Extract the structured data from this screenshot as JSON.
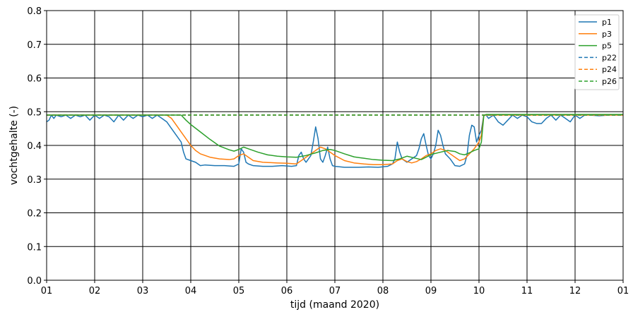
{
  "chart_data": {
    "type": "line",
    "xlabel": "tijd (maand 2020)",
    "ylabel": "vochtgehalte (-)",
    "xlim": [
      1,
      13
    ],
    "ylim": [
      0.0,
      0.8
    ],
    "grid": true,
    "legend_position": "top-right",
    "x_ticks": [
      1,
      2,
      3,
      4,
      5,
      6,
      7,
      8,
      9,
      10,
      11,
      12,
      13
    ],
    "x_tick_labels": [
      "01",
      "02",
      "03",
      "04",
      "05",
      "06",
      "07",
      "08",
      "09",
      "10",
      "11",
      "12",
      "01"
    ],
    "y_ticks": [
      0.0,
      0.1,
      0.2,
      0.3,
      0.4,
      0.5,
      0.6,
      0.7,
      0.8
    ],
    "y_tick_labels": [
      "0.0",
      "0.1",
      "0.2",
      "0.3",
      "0.4",
      "0.5",
      "0.6",
      "0.7",
      "0.8"
    ],
    "series": [
      {
        "name": "p1",
        "color": "#1f77b4",
        "dash": "solid",
        "points": [
          [
            1.0,
            0.47
          ],
          [
            1.05,
            0.475
          ],
          [
            1.1,
            0.49
          ],
          [
            1.15,
            0.48
          ],
          [
            1.2,
            0.49
          ],
          [
            1.3,
            0.485
          ],
          [
            1.4,
            0.49
          ],
          [
            1.5,
            0.48
          ],
          [
            1.6,
            0.49
          ],
          [
            1.7,
            0.485
          ],
          [
            1.8,
            0.49
          ],
          [
            1.9,
            0.475
          ],
          [
            2.0,
            0.49
          ],
          [
            2.1,
            0.48
          ],
          [
            2.2,
            0.49
          ],
          [
            2.3,
            0.485
          ],
          [
            2.4,
            0.47
          ],
          [
            2.5,
            0.49
          ],
          [
            2.6,
            0.475
          ],
          [
            2.7,
            0.49
          ],
          [
            2.8,
            0.48
          ],
          [
            2.9,
            0.49
          ],
          [
            3.0,
            0.485
          ],
          [
            3.1,
            0.49
          ],
          [
            3.2,
            0.48
          ],
          [
            3.3,
            0.49
          ],
          [
            3.4,
            0.48
          ],
          [
            3.5,
            0.47
          ],
          [
            3.6,
            0.45
          ],
          [
            3.7,
            0.43
          ],
          [
            3.8,
            0.41
          ],
          [
            3.85,
            0.38
          ],
          [
            3.9,
            0.36
          ],
          [
            4.0,
            0.355
          ],
          [
            4.1,
            0.35
          ],
          [
            4.2,
            0.34
          ],
          [
            4.3,
            0.342
          ],
          [
            4.5,
            0.34
          ],
          [
            4.7,
            0.34
          ],
          [
            4.9,
            0.338
          ],
          [
            5.0,
            0.345
          ],
          [
            5.05,
            0.39
          ],
          [
            5.1,
            0.38
          ],
          [
            5.15,
            0.35
          ],
          [
            5.2,
            0.345
          ],
          [
            5.3,
            0.34
          ],
          [
            5.5,
            0.338
          ],
          [
            5.7,
            0.338
          ],
          [
            5.9,
            0.34
          ],
          [
            6.1,
            0.338
          ],
          [
            6.2,
            0.34
          ],
          [
            6.25,
            0.37
          ],
          [
            6.3,
            0.38
          ],
          [
            6.35,
            0.36
          ],
          [
            6.4,
            0.35
          ],
          [
            6.5,
            0.37
          ],
          [
            6.55,
            0.41
          ],
          [
            6.6,
            0.455
          ],
          [
            6.65,
            0.42
          ],
          [
            6.7,
            0.36
          ],
          [
            6.75,
            0.35
          ],
          [
            6.8,
            0.37
          ],
          [
            6.85,
            0.395
          ],
          [
            6.9,
            0.36
          ],
          [
            6.95,
            0.34
          ],
          [
            7.0,
            0.338
          ],
          [
            7.2,
            0.335
          ],
          [
            7.5,
            0.335
          ],
          [
            7.7,
            0.336
          ],
          [
            7.9,
            0.335
          ],
          [
            8.1,
            0.338
          ],
          [
            8.2,
            0.345
          ],
          [
            8.25,
            0.36
          ],
          [
            8.3,
            0.41
          ],
          [
            8.35,
            0.38
          ],
          [
            8.4,
            0.36
          ],
          [
            8.5,
            0.35
          ],
          [
            8.6,
            0.36
          ],
          [
            8.7,
            0.37
          ],
          [
            8.75,
            0.39
          ],
          [
            8.8,
            0.42
          ],
          [
            8.85,
            0.435
          ],
          [
            8.9,
            0.4
          ],
          [
            8.95,
            0.37
          ],
          [
            9.0,
            0.36
          ],
          [
            9.05,
            0.375
          ],
          [
            9.1,
            0.4
          ],
          [
            9.15,
            0.445
          ],
          [
            9.2,
            0.43
          ],
          [
            9.25,
            0.4
          ],
          [
            9.3,
            0.375
          ],
          [
            9.4,
            0.36
          ],
          [
            9.5,
            0.34
          ],
          [
            9.6,
            0.338
          ],
          [
            9.7,
            0.345
          ],
          [
            9.75,
            0.37
          ],
          [
            9.8,
            0.43
          ],
          [
            9.85,
            0.46
          ],
          [
            9.9,
            0.455
          ],
          [
            9.95,
            0.41
          ],
          [
            10.0,
            0.43
          ],
          [
            10.05,
            0.445
          ],
          [
            10.1,
            0.49
          ],
          [
            10.15,
            0.49
          ],
          [
            10.2,
            0.48
          ],
          [
            10.3,
            0.49
          ],
          [
            10.4,
            0.47
          ],
          [
            10.5,
            0.46
          ],
          [
            10.6,
            0.475
          ],
          [
            10.7,
            0.49
          ],
          [
            10.8,
            0.48
          ],
          [
            10.9,
            0.49
          ],
          [
            11.0,
            0.485
          ],
          [
            11.1,
            0.47
          ],
          [
            11.2,
            0.465
          ],
          [
            11.3,
            0.465
          ],
          [
            11.4,
            0.48
          ],
          [
            11.5,
            0.49
          ],
          [
            11.6,
            0.475
          ],
          [
            11.7,
            0.49
          ],
          [
            11.8,
            0.48
          ],
          [
            11.9,
            0.47
          ],
          [
            12.0,
            0.49
          ],
          [
            12.1,
            0.48
          ],
          [
            12.2,
            0.49
          ],
          [
            12.3,
            0.49
          ],
          [
            12.5,
            0.488
          ],
          [
            12.7,
            0.49
          ],
          [
            12.9,
            0.49
          ],
          [
            13.0,
            0.49
          ]
        ]
      },
      {
        "name": "p3",
        "color": "#ff7f0e",
        "dash": "solid",
        "points": [
          [
            1.0,
            0.49
          ],
          [
            2.0,
            0.49
          ],
          [
            3.0,
            0.49
          ],
          [
            3.5,
            0.49
          ],
          [
            3.6,
            0.48
          ],
          [
            3.7,
            0.46
          ],
          [
            3.8,
            0.44
          ],
          [
            3.9,
            0.42
          ],
          [
            4.0,
            0.4
          ],
          [
            4.1,
            0.385
          ],
          [
            4.2,
            0.375
          ],
          [
            4.4,
            0.365
          ],
          [
            4.6,
            0.36
          ],
          [
            4.8,
            0.358
          ],
          [
            4.9,
            0.36
          ],
          [
            5.0,
            0.37
          ],
          [
            5.1,
            0.375
          ],
          [
            5.2,
            0.365
          ],
          [
            5.3,
            0.355
          ],
          [
            5.5,
            0.35
          ],
          [
            5.8,
            0.348
          ],
          [
            6.0,
            0.347
          ],
          [
            6.2,
            0.345
          ],
          [
            6.3,
            0.355
          ],
          [
            6.4,
            0.365
          ],
          [
            6.5,
            0.375
          ],
          [
            6.6,
            0.385
          ],
          [
            6.7,
            0.395
          ],
          [
            6.8,
            0.39
          ],
          [
            6.9,
            0.38
          ],
          [
            7.0,
            0.37
          ],
          [
            7.2,
            0.355
          ],
          [
            7.4,
            0.348
          ],
          [
            7.6,
            0.345
          ],
          [
            7.8,
            0.343
          ],
          [
            8.0,
            0.343
          ],
          [
            8.2,
            0.345
          ],
          [
            8.3,
            0.355
          ],
          [
            8.4,
            0.36
          ],
          [
            8.5,
            0.352
          ],
          [
            8.6,
            0.348
          ],
          [
            8.7,
            0.352
          ],
          [
            8.8,
            0.36
          ],
          [
            8.9,
            0.37
          ],
          [
            9.0,
            0.375
          ],
          [
            9.1,
            0.385
          ],
          [
            9.2,
            0.39
          ],
          [
            9.3,
            0.385
          ],
          [
            9.4,
            0.375
          ],
          [
            9.5,
            0.365
          ],
          [
            9.6,
            0.355
          ],
          [
            9.7,
            0.36
          ],
          [
            9.8,
            0.375
          ],
          [
            9.9,
            0.39
          ],
          [
            10.0,
            0.41
          ],
          [
            10.05,
            0.43
          ],
          [
            10.1,
            0.49
          ],
          [
            10.2,
            0.49
          ],
          [
            11.0,
            0.49
          ],
          [
            12.0,
            0.49
          ],
          [
            13.0,
            0.49
          ]
        ]
      },
      {
        "name": "p5",
        "color": "#2ca02c",
        "dash": "solid",
        "points": [
          [
            1.0,
            0.49
          ],
          [
            2.0,
            0.49
          ],
          [
            3.0,
            0.49
          ],
          [
            3.8,
            0.49
          ],
          [
            3.9,
            0.475
          ],
          [
            4.0,
            0.462
          ],
          [
            4.2,
            0.44
          ],
          [
            4.4,
            0.418
          ],
          [
            4.6,
            0.398
          ],
          [
            4.8,
            0.387
          ],
          [
            4.9,
            0.383
          ],
          [
            5.0,
            0.388
          ],
          [
            5.1,
            0.395
          ],
          [
            5.2,
            0.39
          ],
          [
            5.4,
            0.38
          ],
          [
            5.6,
            0.372
          ],
          [
            5.8,
            0.368
          ],
          [
            6.0,
            0.366
          ],
          [
            6.2,
            0.365
          ],
          [
            6.4,
            0.37
          ],
          [
            6.6,
            0.378
          ],
          [
            6.75,
            0.385
          ],
          [
            6.9,
            0.388
          ],
          [
            7.0,
            0.385
          ],
          [
            7.2,
            0.375
          ],
          [
            7.4,
            0.366
          ],
          [
            7.6,
            0.362
          ],
          [
            7.8,
            0.358
          ],
          [
            8.0,
            0.356
          ],
          [
            8.2,
            0.355
          ],
          [
            8.35,
            0.36
          ],
          [
            8.5,
            0.368
          ],
          [
            8.65,
            0.363
          ],
          [
            8.8,
            0.358
          ],
          [
            8.9,
            0.365
          ],
          [
            9.0,
            0.373
          ],
          [
            9.2,
            0.38
          ],
          [
            9.35,
            0.385
          ],
          [
            9.5,
            0.382
          ],
          [
            9.6,
            0.375
          ],
          [
            9.7,
            0.372
          ],
          [
            9.8,
            0.378
          ],
          [
            9.9,
            0.385
          ],
          [
            10.0,
            0.39
          ],
          [
            10.05,
            0.41
          ],
          [
            10.1,
            0.488
          ],
          [
            10.15,
            0.492
          ],
          [
            11.0,
            0.492
          ],
          [
            12.0,
            0.492
          ],
          [
            13.0,
            0.492
          ]
        ]
      },
      {
        "name": "p22",
        "color": "#1f77b4",
        "dash": "dashed",
        "points": [
          [
            1.0,
            0.49
          ],
          [
            2.0,
            0.49
          ],
          [
            3.0,
            0.49
          ],
          [
            4.0,
            0.49
          ],
          [
            5.0,
            0.49
          ],
          [
            6.0,
            0.49
          ],
          [
            7.0,
            0.49
          ],
          [
            8.0,
            0.49
          ],
          [
            9.0,
            0.49
          ],
          [
            10.0,
            0.49
          ],
          [
            11.0,
            0.49
          ],
          [
            12.0,
            0.49
          ],
          [
            13.0,
            0.49
          ]
        ]
      },
      {
        "name": "p24",
        "color": "#ff7f0e",
        "dash": "dashed",
        "points": [
          [
            1.0,
            0.49
          ],
          [
            2.0,
            0.49
          ],
          [
            3.0,
            0.49
          ],
          [
            4.0,
            0.49
          ],
          [
            5.0,
            0.49
          ],
          [
            6.0,
            0.49
          ],
          [
            7.0,
            0.49
          ],
          [
            8.0,
            0.49
          ],
          [
            9.0,
            0.49
          ],
          [
            10.0,
            0.49
          ],
          [
            11.0,
            0.49
          ],
          [
            12.0,
            0.49
          ],
          [
            13.0,
            0.49
          ]
        ]
      },
      {
        "name": "p26",
        "color": "#2ca02c",
        "dash": "dashed",
        "points": [
          [
            1.0,
            0.49
          ],
          [
            2.0,
            0.49
          ],
          [
            3.0,
            0.49
          ],
          [
            4.0,
            0.49
          ],
          [
            5.0,
            0.49
          ],
          [
            6.0,
            0.49
          ],
          [
            7.0,
            0.49
          ],
          [
            8.0,
            0.49
          ],
          [
            9.0,
            0.49
          ],
          [
            10.0,
            0.49
          ],
          [
            11.0,
            0.49
          ],
          [
            12.0,
            0.49
          ],
          [
            13.0,
            0.49
          ]
        ]
      }
    ]
  }
}
